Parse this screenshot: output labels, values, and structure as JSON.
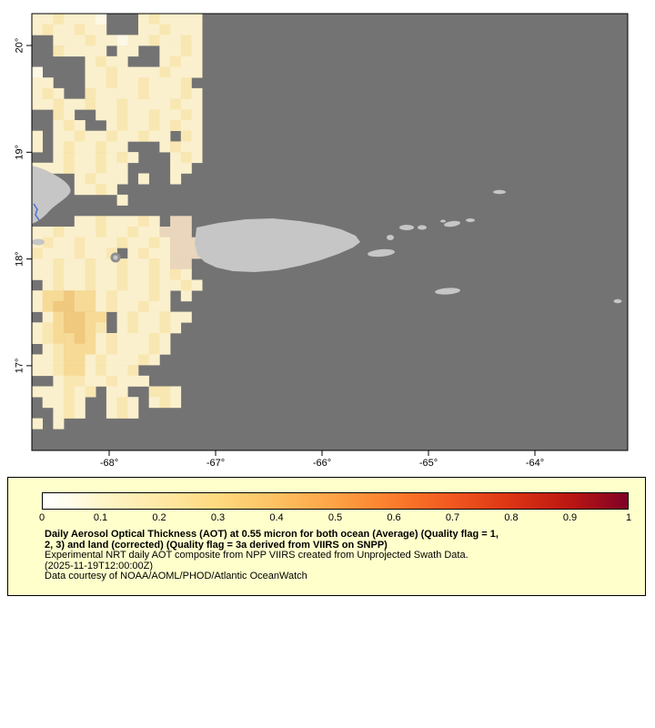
{
  "map": {
    "ocean_color": "#737373",
    "land_color": "#c6c6c6",
    "river_color": "#4a6fd4",
    "x_axis": {
      "ticks": [
        "-68°",
        "-67°",
        "-66°",
        "-65°",
        "-64°"
      ]
    },
    "y_axis": {
      "ticks": [
        "20°",
        "19°",
        "18°",
        "17°"
      ]
    },
    "aot_grid": {
      "palette": {
        "1": "#fdf8e6",
        "2": "#fbf0cd",
        "3": "#f9e7b2",
        "4": "#f6da96",
        "5": "#f0c87e",
        "6": "#e9d6bd"
      },
      "rows": [
        "2232221...232222",
        "2322322...223222",
        "..22232212232232",
        "..32222.22..2232",
        ".....2322...2322",
        "1....22322223222",
        "22...2232232223.",
        "232..32222322232",
        "2232232232222322",
        "..32..2232232232",
        "..232..232232322",
        "2.22322322322.32",
        "2.2322322...2322",
        "..23223232...232",
        "222322322....22.",
        "....23222.2..2..",
        "....2232........",
        "........2.......",
        "................",
        "....22322232.66.",
        "223222322322666.",
        "2322322232232666",
        "32223223.2322666",
        "223223223223266.",
        "223223223223232.",
        ".232232232232232",
        "2445442322232.2.",
        "2455442322322...",
        ".245544.2322322.",
        "2345543.232232..",
        "2344542322232...",
        ".234442322232...",
        "223442322232....",
        "2234423223......",
        "..233223222.....",
        "222323.22..332..",
        ".2232..232.232..",
        "..232..232......",
        "2.2.............",
        "................",
        "................"
      ]
    }
  },
  "legend": {
    "background_color": "#ffffcc",
    "colorbar": {
      "ticks": [
        "0",
        "0.1",
        "0.2",
        "0.3",
        "0.4",
        "0.5",
        "0.6",
        "0.7",
        "0.8",
        "0.9",
        "1"
      ],
      "gradient": [
        {
          "at": 0,
          "color": "#ffffff"
        },
        {
          "at": 0.05,
          "color": "#fffce9"
        },
        {
          "at": 0.1,
          "color": "#fef5c9"
        },
        {
          "at": 0.2,
          "color": "#fee8a6"
        },
        {
          "at": 0.3,
          "color": "#fed97e"
        },
        {
          "at": 0.4,
          "color": "#fdc061"
        },
        {
          "at": 0.5,
          "color": "#fda245"
        },
        {
          "at": 0.6,
          "color": "#fb7c2c"
        },
        {
          "at": 0.7,
          "color": "#f1571f"
        },
        {
          "at": 0.8,
          "color": "#dc3414"
        },
        {
          "at": 0.9,
          "color": "#bb1712"
        },
        {
          "at": 1,
          "color": "#800026"
        }
      ]
    },
    "title_lines": [
      "Daily Aerosol Optical Thickness (AOT) at 0.55 micron for both ocean (Average) (Quality flag = 1,",
      "2, 3) and land (corrected) (Quality flag = 3a derived from VIIRS on SNPP)"
    ],
    "description": "Experimental NRT daily AOT composite from NPP VIIRS created from Unprojected Swath Data.",
    "timestamp": "(2025-11-19T12:00:00Z)",
    "credit": "Data courtesy of NOAA/AOML/PHOD/Atlantic OceanWatch"
  }
}
